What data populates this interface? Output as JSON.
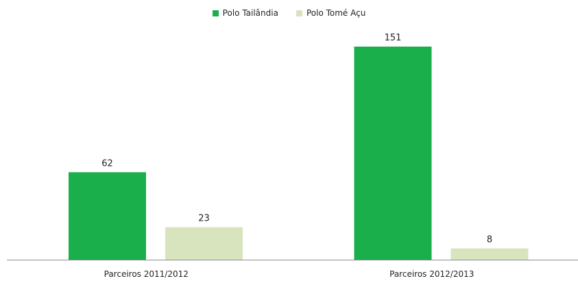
{
  "chart_data": {
    "type": "bar",
    "title": "",
    "xlabel": "",
    "ylabel": "",
    "categories": [
      "Parceiros 2011/2012",
      "Parceiros 2012/2013"
    ],
    "series": [
      {
        "name": "Polo Tailândia",
        "values": [
          62,
          151
        ],
        "color": "#1aaf4b"
      },
      {
        "name": "Polo Tomé Açu",
        "values": [
          23,
          8
        ],
        "color": "#d7e4bd"
      }
    ],
    "ylim": [
      0,
      170
    ],
    "grid": false,
    "legend_position": "top-center",
    "data_labels": true
  }
}
